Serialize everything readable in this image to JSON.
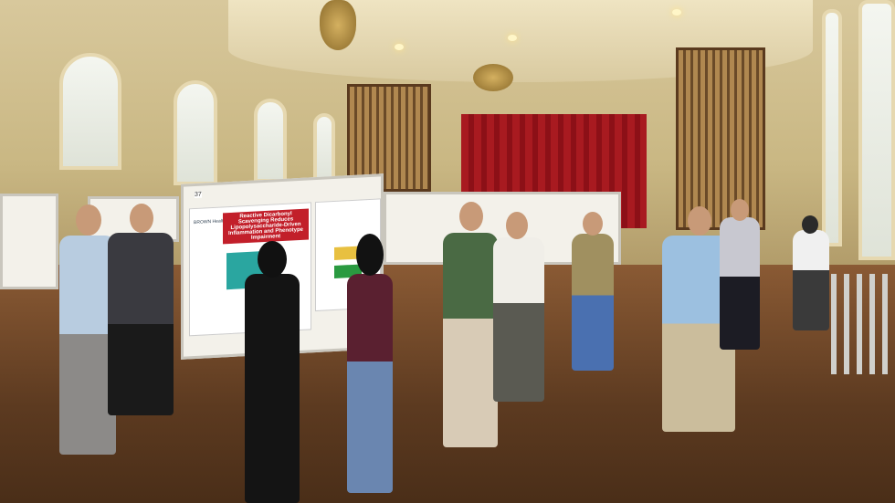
{
  "poster": {
    "number": "37",
    "title": "Reactive Dicarbonyl Scavenging Reduces Lipopolysaccharide-Driven Inflammation and Phenotype Impairment",
    "logo_text": "BROWN Health"
  },
  "colors": {
    "curtain": "#a81a20",
    "floor": "#6a4426",
    "wall": "#d2c08e",
    "poster_accent": "#c21f2a"
  }
}
